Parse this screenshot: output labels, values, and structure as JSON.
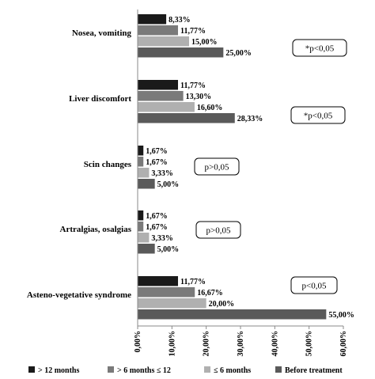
{
  "chart_data": {
    "type": "bar",
    "orientation": "horizontal",
    "categories": [
      "Nosea, vomiting",
      "Liver discomfort",
      "Scin changes",
      "Artralgias, osalgias",
      "Asteno-vegetative syndrome"
    ],
    "series": [
      {
        "name": "> 12 months",
        "color": "#1a1a1a",
        "values": [
          8.33,
          11.77,
          1.67,
          1.67,
          11.77
        ],
        "labels": [
          "8,33%",
          "11,77%",
          "1,67%",
          "1,67%",
          "11,77%"
        ]
      },
      {
        "name": "> 6 months ≤ 12",
        "color": "#7a7a7a",
        "values": [
          11.77,
          13.3,
          1.67,
          1.67,
          16.67
        ],
        "labels": [
          "11,77%",
          "13,30%",
          "1,67%",
          "1,67%",
          "16,67%"
        ]
      },
      {
        "name": "≤ 6 months",
        "color": "#b0b0b0",
        "values": [
          15.0,
          16.6,
          3.33,
          3.33,
          20.0
        ],
        "labels": [
          "15,00%",
          "16,60%",
          "3,33%",
          "3,33%",
          "20,00%"
        ]
      },
      {
        "name": "Before treatment",
        "color": "#5a5a5a",
        "values": [
          25.0,
          28.33,
          5.0,
          5.0,
          55.0
        ],
        "labels": [
          "25,00%",
          "28,33%",
          "5,00%",
          "5,00%",
          "55,00%"
        ]
      }
    ],
    "annotations": [
      "*p<0,05",
      "*p<0,05",
      "p>0,05",
      "p>0,05",
      "p<0,05"
    ],
    "xlim": [
      0,
      60
    ],
    "xticks": [
      0,
      10,
      20,
      30,
      40,
      50,
      60
    ],
    "xtick_labels": [
      "0,00%",
      "10,00%",
      "20,00%",
      "30,00%",
      "40,00%",
      "50,00%",
      "60,00%"
    ],
    "legend_position": "bottom",
    "grid": false,
    "title": "",
    "xlabel": "",
    "ylabel": ""
  }
}
